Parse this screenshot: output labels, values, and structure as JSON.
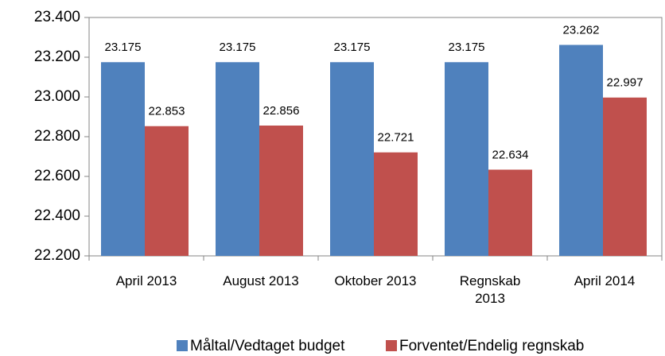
{
  "chart_data": {
    "type": "bar",
    "categories": [
      "April 2013",
      "August 2013",
      "Oktober 2013",
      "Regnskab\n2013",
      "April 2014"
    ],
    "series": [
      {
        "name": "Måltal/Vedtaget budget",
        "color": "#4f81bd",
        "values": [
          23175,
          23175,
          23175,
          23175,
          23262
        ],
        "value_labels": [
          "23.175",
          "23.175",
          "23.175",
          "23.175",
          "23.262"
        ]
      },
      {
        "name": "Forventet/Endelig regnskab",
        "color": "#c0504d",
        "values": [
          22853,
          22856,
          22721,
          22634,
          22997
        ],
        "value_labels": [
          "22.853",
          "22.856",
          "22.721",
          "22.634",
          "22.997"
        ]
      }
    ],
    "ylim": [
      22200,
      23400
    ],
    "yticks": [
      {
        "value": 22200,
        "label": "22.200"
      },
      {
        "value": 22400,
        "label": "22.400"
      },
      {
        "value": 22600,
        "label": "22.600"
      },
      {
        "value": 22800,
        "label": "22.800"
      },
      {
        "value": 23000,
        "label": "23.000"
      },
      {
        "value": 23200,
        "label": "23.200"
      },
      {
        "value": 23400,
        "label": "23.400"
      }
    ],
    "grid": false,
    "legend": "bottom"
  }
}
